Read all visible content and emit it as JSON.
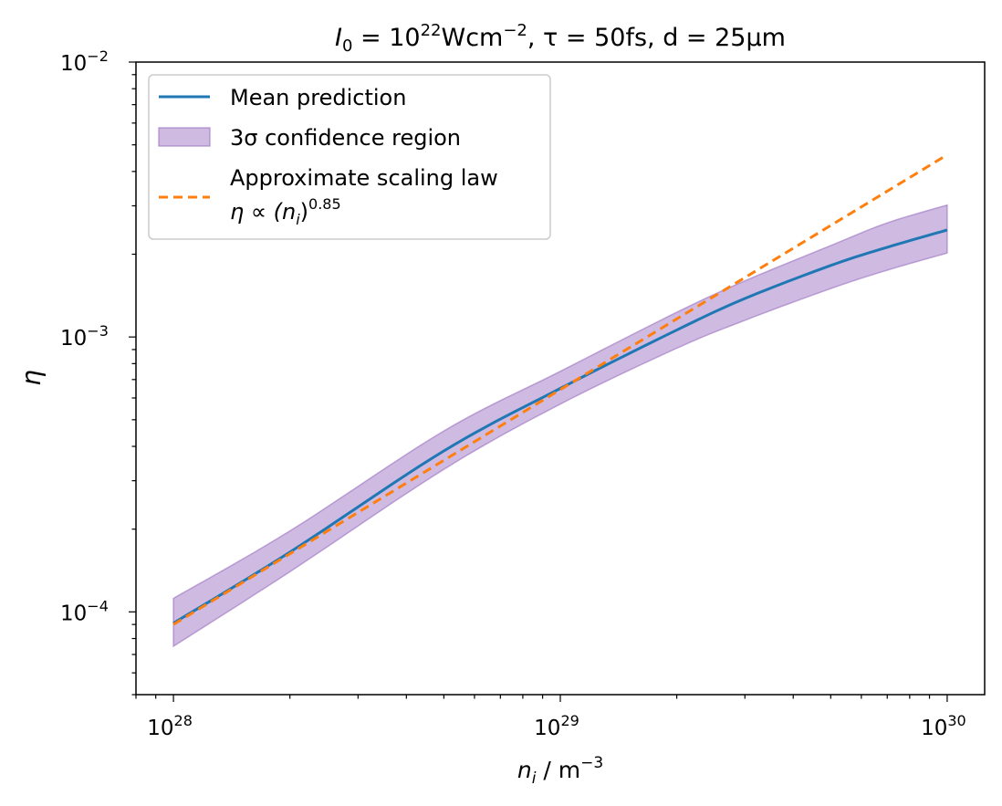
{
  "chart_data": {
    "type": "line",
    "title": {
      "prefix": "I",
      "prefix_sub": "0",
      "eq1": " = 10",
      "eq1_sup": "22",
      "unit1": "Wcm",
      "unit1_sup": "−2",
      "part2": ", τ = 50fs, d = 25μm"
    },
    "xlabel": {
      "base": "n",
      "sub": "i",
      "unit": " / m",
      "sup": "−3"
    },
    "ylabel": "η",
    "x_scale": "log",
    "y_scale": "log",
    "xlim": [
      8e+27,
      1.25e+30
    ],
    "ylim": [
      5e-05,
      0.01
    ],
    "x_ticks": [
      {
        "value": 1e+28,
        "base": "10",
        "exp": "28"
      },
      {
        "value": 1e+29,
        "base": "10",
        "exp": "29"
      },
      {
        "value": 1e+30,
        "base": "10",
        "exp": "30"
      }
    ],
    "y_ticks": [
      {
        "value": 0.0001,
        "base": "10",
        "exp": "−4"
      },
      {
        "value": 0.001,
        "base": "10",
        "exp": "−3"
      },
      {
        "value": 0.01,
        "base": "10",
        "exp": "−2"
      }
    ],
    "series": [
      {
        "name": "Mean prediction",
        "kind": "line",
        "color": "#1f77b4",
        "x": [
          1e+28,
          2e+28,
          5e+28,
          1e+29,
          2e+29,
          3e+29,
          5e+29,
          7e+29,
          1e+30
        ],
        "y": [
          9.1e-05,
          0.000165,
          0.000385,
          0.00065,
          0.00106,
          0.00138,
          0.00182,
          0.00212,
          0.00245
        ]
      },
      {
        "name": "3σ confidence region",
        "kind": "band",
        "color": "#9467bd",
        "x": [
          1e+28,
          2e+28,
          5e+28,
          1e+29,
          2e+29,
          3e+29,
          5e+29,
          7e+29,
          1e+30
        ],
        "y_lower": [
          7.5e-05,
          0.00014,
          0.00033,
          0.00057,
          0.00091,
          0.00115,
          0.0015,
          0.00175,
          0.00202
        ],
        "y_upper": [
          0.000112,
          0.000197,
          0.000455,
          0.00075,
          0.00123,
          0.0016,
          0.00215,
          0.0026,
          0.00302
        ]
      },
      {
        "name": "Approximate scaling law",
        "name_line2": {
          "lhs": "η ∝ (n",
          "sub": "i",
          "rhs": ")",
          "sup": "0.85"
        },
        "kind": "dashed",
        "color": "#ff7f0e",
        "exponent": 0.85,
        "x": [
          1e+28,
          1e+30
        ],
        "y": [
          9e-05,
          0.0046
        ]
      }
    ],
    "legend": {
      "placement": "top-left"
    }
  }
}
